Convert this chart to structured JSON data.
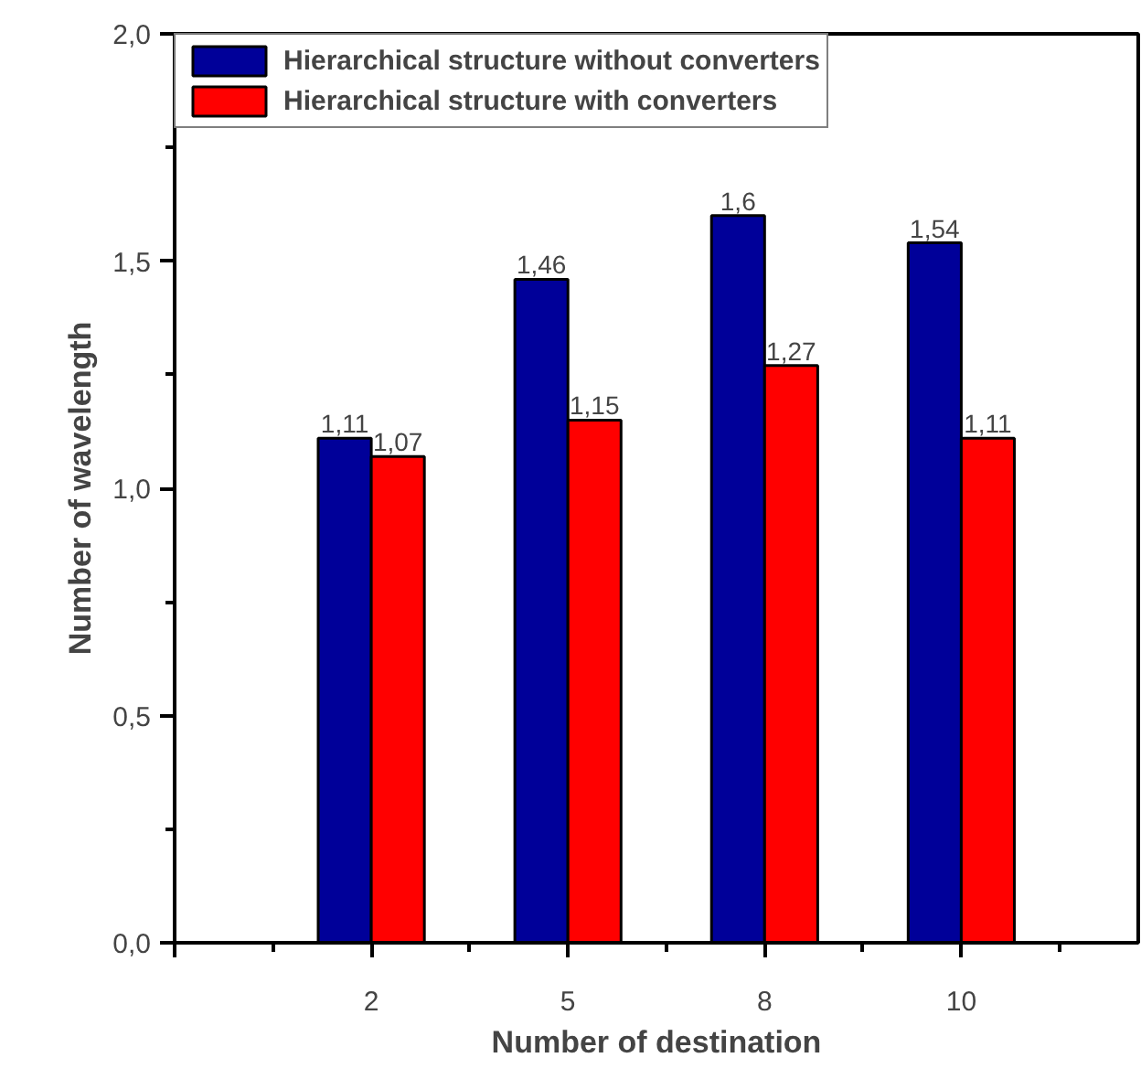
{
  "chart_data": {
    "type": "bar",
    "xlabel": "Number of destination",
    "ylabel": "Number of wavelength",
    "categories": [
      null,
      "2",
      "5",
      "8",
      "10"
    ],
    "series": [
      {
        "name": "Hierarchical structure without converters",
        "color": "#000099",
        "values": [
          null,
          1.11,
          1.46,
          1.6,
          1.54
        ],
        "value_labels": [
          null,
          "1,11",
          "1,46",
          "1,6",
          "1,54"
        ]
      },
      {
        "name": "Hierarchical structure with converters",
        "color": "#ff0000",
        "values": [
          null,
          1.07,
          1.15,
          1.27,
          1.11
        ],
        "value_labels": [
          null,
          "1,07",
          "1,15",
          "1,27",
          "1,11"
        ]
      }
    ],
    "ylim": [
      0,
      2
    ],
    "yticks": [
      {
        "value": 0,
        "label": "0,0"
      },
      {
        "value": 0.5,
        "label": "0,5"
      },
      {
        "value": 1,
        "label": "1,0"
      },
      {
        "value": 1.5,
        "label": "1,5"
      },
      {
        "value": 2,
        "label": "2,0"
      }
    ],
    "grid": false,
    "legend": "top left"
  }
}
